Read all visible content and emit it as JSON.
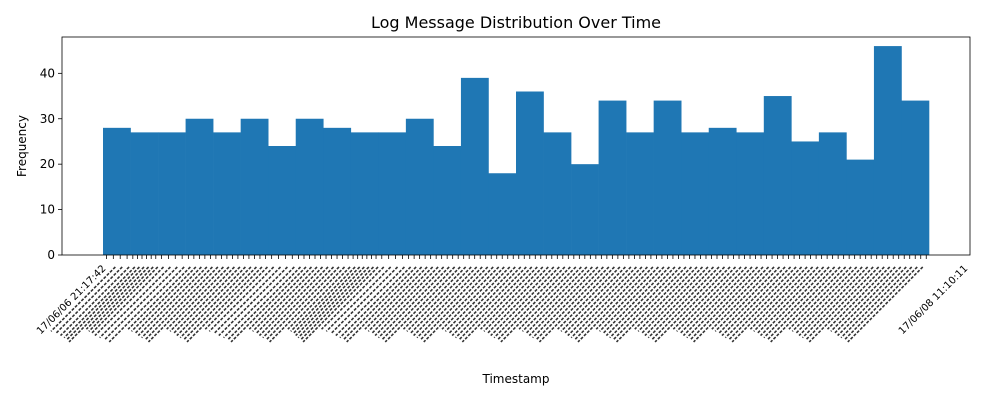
{
  "chart_data": {
    "type": "bar",
    "title": "Log Message Distribution Over Time",
    "xlabel": "Timestamp",
    "ylabel": "Frequency",
    "ylim": [
      0,
      48
    ],
    "yticks": [
      0,
      10,
      20,
      30,
      40
    ],
    "grid": false,
    "bar_color": "#1f77b4",
    "x_tick_first_label": "17/06/06 21:17:42",
    "x_tick_last_label": "17/06/08 11:10:11",
    "bins": [
      {
        "value": 28,
        "ticks": 4
      },
      {
        "value": 27,
        "ticks": 6
      },
      {
        "value": 27,
        "ticks": 4
      },
      {
        "value": 30,
        "ticks": 5
      },
      {
        "value": 27,
        "ticks": 5
      },
      {
        "value": 30,
        "ticks": 5
      },
      {
        "value": 24,
        "ticks": 4
      },
      {
        "value": 30,
        "ticks": 5
      },
      {
        "value": 28,
        "ticks": 5
      },
      {
        "value": 27,
        "ticks": 6
      },
      {
        "value": 27,
        "ticks": 4
      },
      {
        "value": 30,
        "ticks": 5
      },
      {
        "value": 24,
        "ticks": 5
      },
      {
        "value": 39,
        "ticks": 5
      },
      {
        "value": 18,
        "ticks": 5
      },
      {
        "value": 36,
        "ticks": 5
      },
      {
        "value": 27,
        "ticks": 5
      },
      {
        "value": 20,
        "ticks": 5
      },
      {
        "value": 34,
        "ticks": 5
      },
      {
        "value": 27,
        "ticks": 5
      },
      {
        "value": 34,
        "ticks": 5
      },
      {
        "value": 27,
        "ticks": 5
      },
      {
        "value": 28,
        "ticks": 5
      },
      {
        "value": 27,
        "ticks": 5
      },
      {
        "value": 35,
        "ticks": 5
      },
      {
        "value": 25,
        "ticks": 5
      },
      {
        "value": 27,
        "ticks": 5
      },
      {
        "value": 21,
        "ticks": 5
      },
      {
        "value": 46,
        "ticks": 5
      },
      {
        "value": 34,
        "ticks": 5
      }
    ]
  }
}
